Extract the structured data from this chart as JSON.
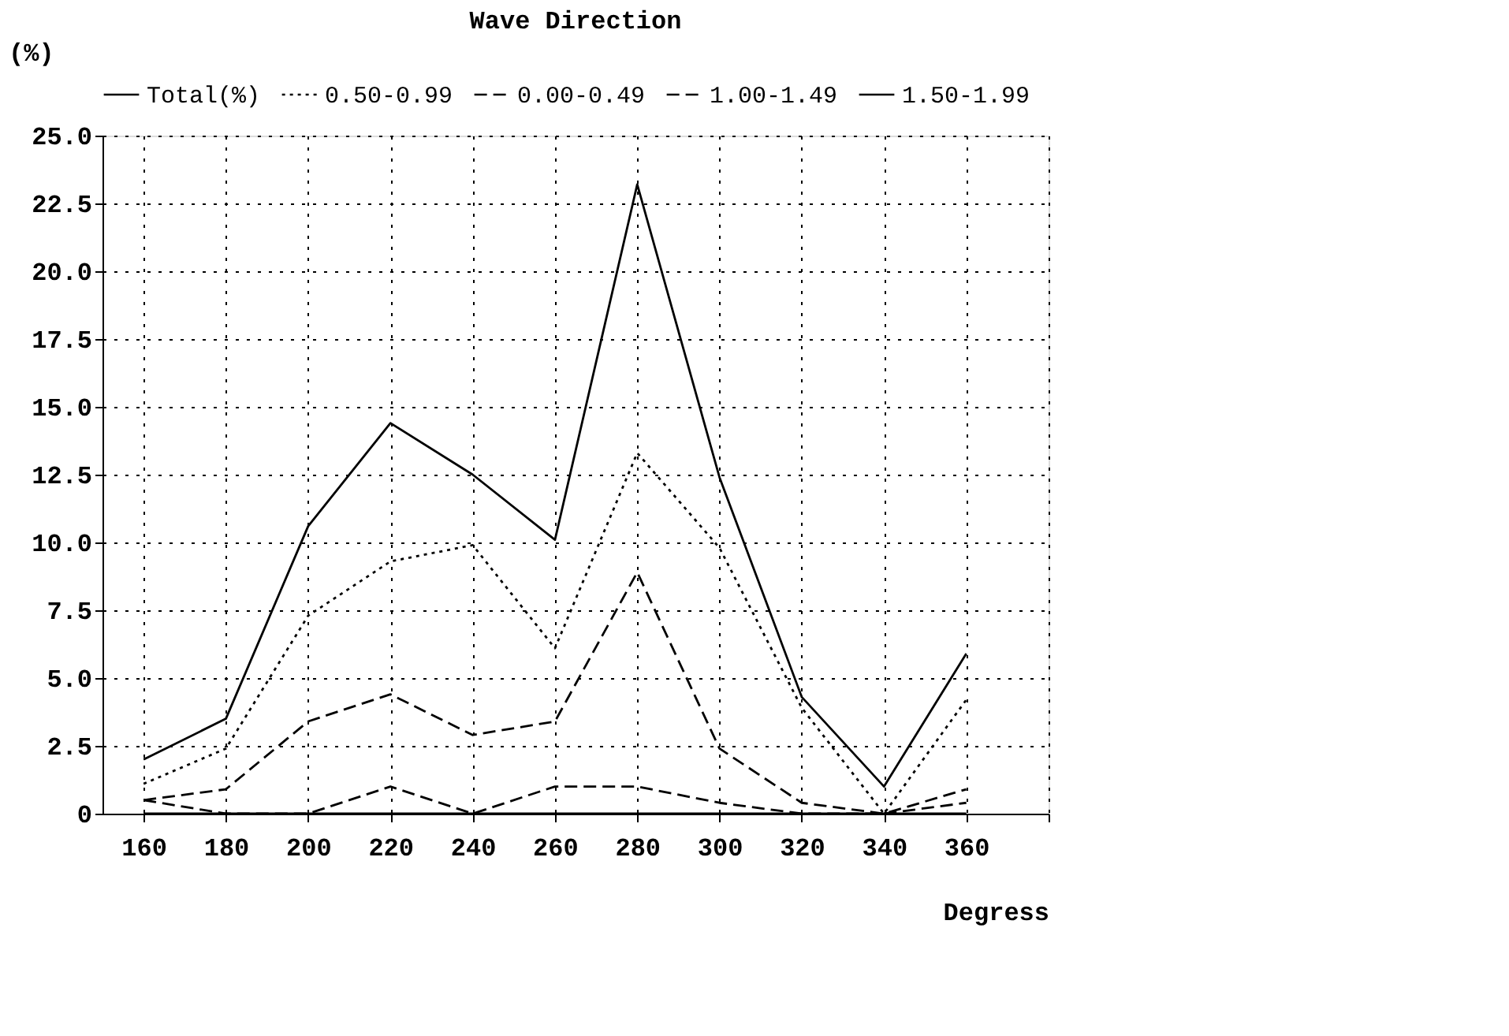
{
  "chart_data": {
    "type": "line",
    "title": "Wave Direction",
    "xlabel": "Degress",
    "ylabel": "(%)",
    "x": [
      160,
      180,
      200,
      220,
      240,
      260,
      280,
      300,
      320,
      340,
      360
    ],
    "xlim": [
      150,
      380
    ],
    "xticks": [
      160,
      180,
      200,
      220,
      240,
      260,
      280,
      300,
      320,
      340,
      360,
      {
        "value": 380,
        "label": null
      }
    ],
    "ylim": [
      0,
      25
    ],
    "yticks": [
      {
        "value": 0,
        "label": "0"
      },
      2.5,
      {
        "value": 5,
        "label": "5.0"
      },
      7.5,
      {
        "value": 10,
        "label": "10.0"
      },
      12.5,
      {
        "value": 15,
        "label": "15.0"
      },
      17.5,
      {
        "value": 20,
        "label": "20.0"
      },
      22.5,
      {
        "value": 25,
        "label": "25.0"
      }
    ],
    "grid": true,
    "legend": "top",
    "marker": "none",
    "series": [
      {
        "name": "Total(%)",
        "color": "#000000",
        "line_style": "solid",
        "values": [
          2.0,
          3.5,
          10.6,
          14.4,
          12.5,
          10.1,
          23.2,
          12.4,
          4.3,
          1.0,
          5.9
        ]
      },
      {
        "name": "0.50-0.99",
        "color": "#000000",
        "line_style": "dotted",
        "values": [
          1.1,
          2.4,
          7.3,
          9.3,
          9.9,
          6.1,
          13.3,
          9.8,
          3.9,
          0,
          4.2
        ]
      },
      {
        "name": "0.00-0.49",
        "color": "#000000",
        "line_style": "dashed",
        "values": [
          0.5,
          0.9,
          3.4,
          4.4,
          2.9,
          3.4,
          8.9,
          2.4,
          0.4,
          0,
          0.9
        ]
      },
      {
        "name": "1.00-1.49",
        "color": "#000000",
        "line_style": "dashed",
        "values": [
          0.5,
          0,
          0,
          1.0,
          0,
          1.0,
          1.0,
          0.4,
          0,
          0,
          0.4
        ]
      },
      {
        "name": "1.50-1.99",
        "color": "#000000",
        "line_style": "solid",
        "values": [
          0,
          0,
          0,
          0,
          0,
          0,
          0,
          0,
          0,
          0,
          0
        ]
      }
    ]
  }
}
